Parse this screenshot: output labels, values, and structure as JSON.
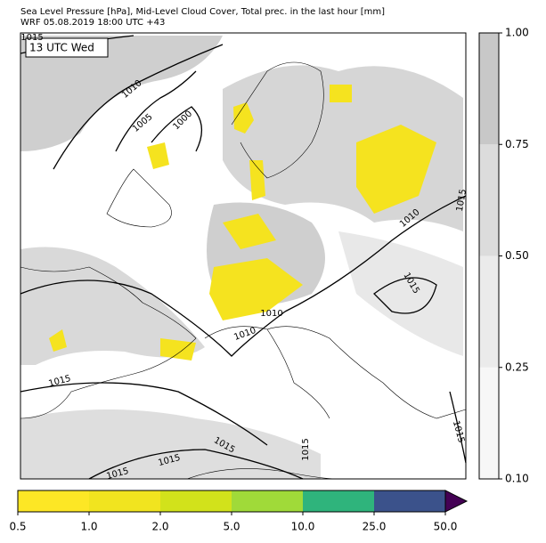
{
  "header": {
    "title": [
      "Sea Level Pressure [hPa], Mid-Level Cloud Cover, Total prec. in the last hour [mm]",
      "WRF 05.08.2019 18:00 UTC +43"
    ]
  },
  "map": {
    "time_label": "13 UTC Wed",
    "isobar_labels": [
      "1015",
      "1010",
      "1005",
      "1000",
      "1010",
      "1015",
      "1015",
      "1010",
      "1010",
      "1015",
      "1015",
      "1015",
      "1015",
      "1015",
      "1015"
    ]
  },
  "cloud_colorbar": {
    "ticks": [
      "0.10",
      "0.25",
      "0.50",
      "0.75",
      "1.00"
    ],
    "colors": [
      "#f7f7f7",
      "#ebebeb",
      "#dcdcdc",
      "#c8c8c8"
    ]
  },
  "precip_colorbar": {
    "ticks": [
      "0.5",
      "1.0",
      "2.0",
      "5.0",
      "10.0",
      "25.0",
      "50.0"
    ],
    "colors": [
      "#fde725",
      "#f1e41f",
      "#d2e21b",
      "#a0da39",
      "#2fb47c",
      "#3b528b"
    ],
    "extend_color": "#440154"
  }
}
